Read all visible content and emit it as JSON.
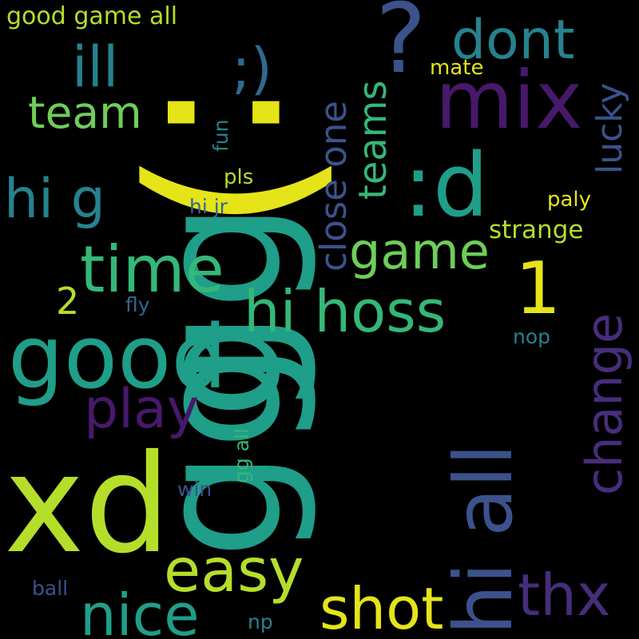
{
  "colors": {
    "background": "#000000",
    "viridis_purple_dark": "#48186a",
    "viridis_purple": "#472d7b",
    "viridis_blue": "#3b528b",
    "viridis_slate": "#31688e",
    "viridis_teal_dark": "#26828e",
    "viridis_teal": "#1f9e89",
    "viridis_green": "#35b779",
    "viridis_lime": "#6ece58",
    "viridis_yellowgreen": "#b5de2b",
    "viridis_yellow": "#fde725"
  },
  "words": [
    {
      "id": "gg-1",
      "text": "gg",
      "color": "#1f9e89"
    },
    {
      "id": "gg-2",
      "text": "gg",
      "color": "#1f9e89"
    },
    {
      "id": "xd",
      "text": "xd",
      "color": "#b5de2b"
    },
    {
      "id": "smiley",
      "text": ":)",
      "color": "#e5e419"
    },
    {
      "id": "good",
      "text": "good",
      "color": "#1f9e89"
    },
    {
      "id": "hi-all",
      "text": "hi all",
      "color": "#3b528b"
    },
    {
      "id": "colon-d",
      "text": ":d",
      "color": "#1f9e89"
    },
    {
      "id": "mix",
      "text": "mix",
      "color": "#48186a"
    },
    {
      "id": "question",
      "text": "?",
      "color": "#3b528b"
    },
    {
      "id": "time",
      "text": "time",
      "color": "#35b779"
    },
    {
      "id": "hi-hoss",
      "text": "hi hoss",
      "color": "#35b779"
    },
    {
      "id": "easy",
      "text": "easy",
      "color": "#b5de2b"
    },
    {
      "id": "nice",
      "text": "nice",
      "color": "#1f9e89"
    },
    {
      "id": "shot",
      "text": "shot",
      "color": "#e5e419"
    },
    {
      "id": "thx",
      "text": "thx",
      "color": "#472d7b"
    },
    {
      "id": "change",
      "text": "change",
      "color": "#472d7b"
    },
    {
      "id": "play",
      "text": "play",
      "color": "#48186a"
    },
    {
      "id": "one",
      "text": "1",
      "color": "#e5e419"
    },
    {
      "id": "winky",
      "text": ";)",
      "color": "#31688e"
    },
    {
      "id": "ill",
      "text": "ill",
      "color": "#26828e"
    },
    {
      "id": "dont",
      "text": "dont",
      "color": "#26828e"
    },
    {
      "id": "hi-g",
      "text": "hi g",
      "color": "#26828e"
    },
    {
      "id": "game",
      "text": "game",
      "color": "#6ece58"
    },
    {
      "id": "team",
      "text": "team",
      "color": "#6ece58"
    },
    {
      "id": "close-one",
      "text": "close one",
      "color": "#3b528b"
    },
    {
      "id": "teams",
      "text": "teams",
      "color": "#35b779"
    },
    {
      "id": "lucky",
      "text": "lucky",
      "color": "#3b528b"
    },
    {
      "id": "two",
      "text": "2",
      "color": "#b5de2b"
    },
    {
      "id": "good-game-all",
      "text": "good game all",
      "color": "#b5de2b"
    },
    {
      "id": "mate",
      "text": "mate",
      "color": "#e5e419"
    },
    {
      "id": "strange",
      "text": "strange",
      "color": "#b5de2b"
    },
    {
      "id": "paly",
      "text": "paly",
      "color": "#e5e419"
    },
    {
      "id": "pls",
      "text": "pls",
      "color": "#b5de2b"
    },
    {
      "id": "hi-jr",
      "text": "hi jr",
      "color": "#31688e"
    },
    {
      "id": "fun",
      "text": "fun",
      "color": "#26828e"
    },
    {
      "id": "fly",
      "text": "fly",
      "color": "#31688e"
    },
    {
      "id": "nop",
      "text": "nop",
      "color": "#26828e"
    },
    {
      "id": "gg-all",
      "text": "gg all",
      "color": "#35b779"
    },
    {
      "id": "win",
      "text": "win",
      "color": "#3b528b"
    },
    {
      "id": "ball",
      "text": "ball",
      "color": "#3b528b"
    },
    {
      "id": "np",
      "text": "np",
      "color": "#26828e"
    }
  ]
}
